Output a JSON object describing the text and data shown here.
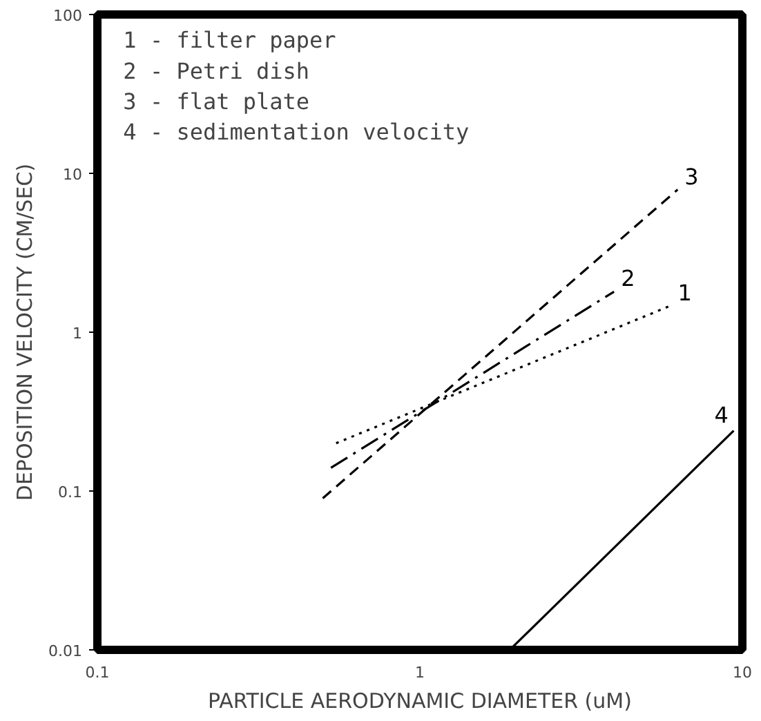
{
  "chart_data": {
    "type": "line",
    "xlabel": "PARTICLE AERODYNAMIC DIAMETER (uM)",
    "ylabel": "DEPOSITION VELOCITY (CM/SEC)",
    "annotations": [
      "1 - filter paper",
      "2 - Petri dish",
      "3 - flat plate",
      "4 - sedimentation velocity"
    ],
    "log": "xy",
    "xlim": [
      0.1,
      10
    ],
    "ylim": [
      0.01,
      100
    ],
    "xticks": [
      0.1,
      1,
      10
    ],
    "yticks": [
      0.01,
      0.1,
      1,
      10,
      100
    ],
    "grid": false,
    "series": [
      {
        "name": "1",
        "color": "#000000",
        "line_style": "dotted",
        "x": [
          0.55,
          6.0
        ],
        "values": [
          0.2,
          1.47
        ]
      },
      {
        "name": "2",
        "color": "#000000",
        "line_style": "dashdot",
        "x": [
          0.53,
          4.0
        ],
        "values": [
          0.14,
          1.8
        ]
      },
      {
        "name": "3",
        "color": "#000000",
        "line_style": "dashed",
        "x": [
          0.5,
          6.3
        ],
        "values": [
          0.09,
          7.9
        ]
      },
      {
        "name": "4",
        "color": "#000000",
        "line_style": "solid",
        "x": [
          1.9,
          9.4
        ],
        "values": [
          0.01,
          0.24
        ]
      }
    ]
  }
}
